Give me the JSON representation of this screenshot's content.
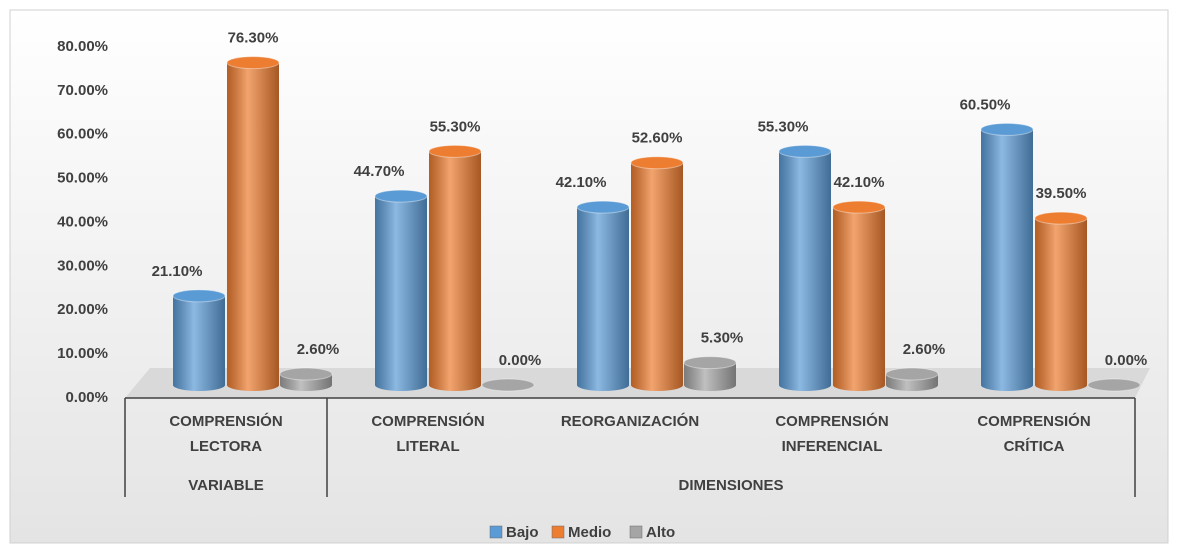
{
  "chart_data": {
    "type": "bar",
    "groups": [
      {
        "name": "VARIABLE",
        "categories": [
          "COMPRENSIÓN LECTORA"
        ]
      },
      {
        "name": "DIMENSIONES",
        "categories": [
          "COMPRENSIÓN LITERAL",
          "REORGANIZACIÓN",
          "COMPRENSIÓN INFERENCIAL",
          "COMPRENSIÓN CRÍTICA"
        ]
      }
    ],
    "series": [
      {
        "name": "Bajo",
        "color": "#5b9bd5",
        "values": [
          21.1,
          44.7,
          42.1,
          55.3,
          60.5
        ],
        "value_labels": [
          "21.10%",
          "44.70%",
          "42.10%",
          "55.30%",
          "60.50%"
        ]
      },
      {
        "name": "Medio",
        "color": "#ed7d31",
        "values": [
          76.3,
          55.3,
          52.6,
          42.1,
          39.5
        ],
        "value_labels": [
          "76.30%",
          "55.30%",
          "52.60%",
          "42.10%",
          "39.50%"
        ]
      },
      {
        "name": "Alto",
        "color": "#a5a5a5",
        "values": [
          2.6,
          0,
          5.3,
          2.6,
          0
        ],
        "value_labels": [
          "2.60%",
          "0.00%",
          "5.30%",
          "2.60%",
          "0.00%"
        ]
      }
    ],
    "ylim": [
      0,
      80
    ],
    "yticks": [
      {
        "value": 0,
        "label": "0.00%"
      },
      {
        "value": 10,
        "label": "10.00%"
      },
      {
        "value": 20,
        "label": "20.00%"
      },
      {
        "value": 30,
        "label": "30.00%"
      },
      {
        "value": 40,
        "label": "40.00%"
      },
      {
        "value": 50,
        "label": "50.00%"
      },
      {
        "value": 60,
        "label": "60.00%"
      },
      {
        "value": 70,
        "label": "70.00%"
      },
      {
        "value": 80,
        "label": "80.00%"
      }
    ],
    "legend": "bottom"
  }
}
